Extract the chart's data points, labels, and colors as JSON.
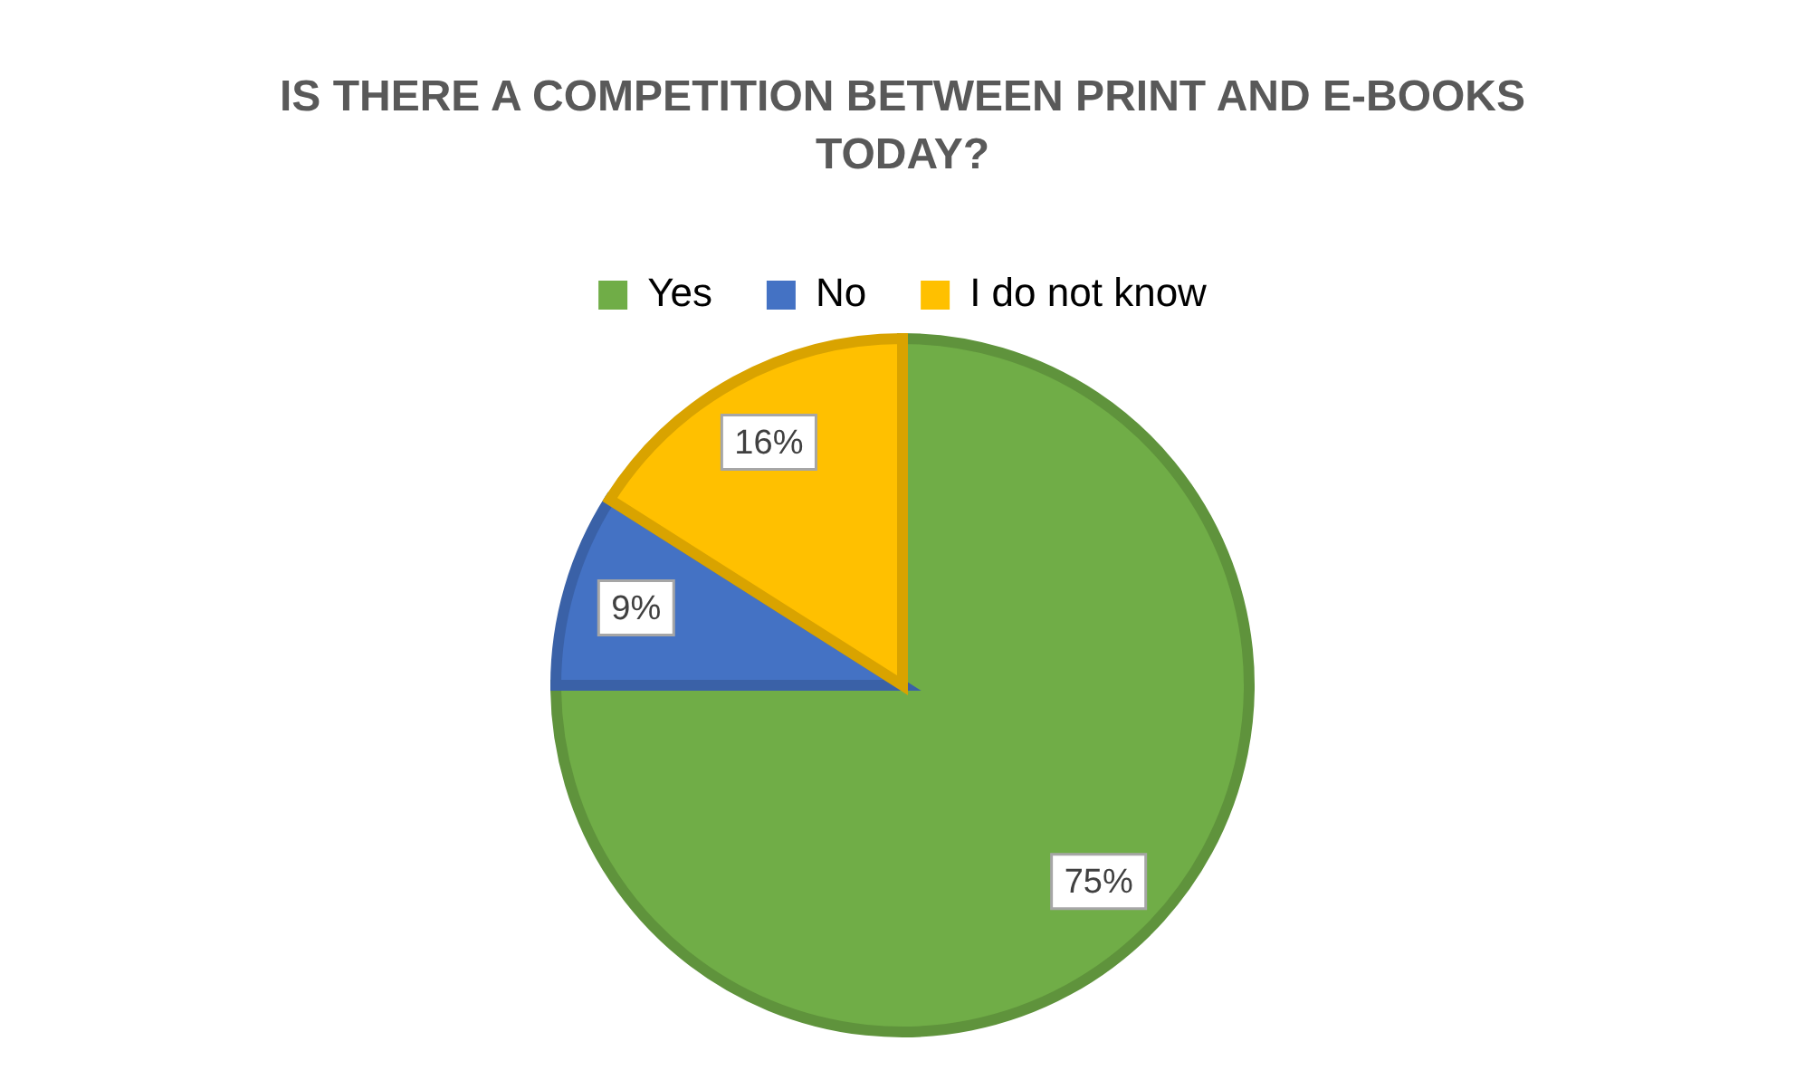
{
  "chart_data": {
    "type": "pie",
    "title": "IS THERE A COMPETITION BETWEEN PRINT AND E-BOOKS TODAY?",
    "categories": [
      "Yes",
      "No",
      "I do not know"
    ],
    "values": [
      75,
      9,
      16
    ],
    "colors": [
      "#70ad47",
      "#4472c4",
      "#ffc000"
    ],
    "value_labels": [
      "75%",
      "9%",
      "16%"
    ],
    "legend": "top"
  }
}
